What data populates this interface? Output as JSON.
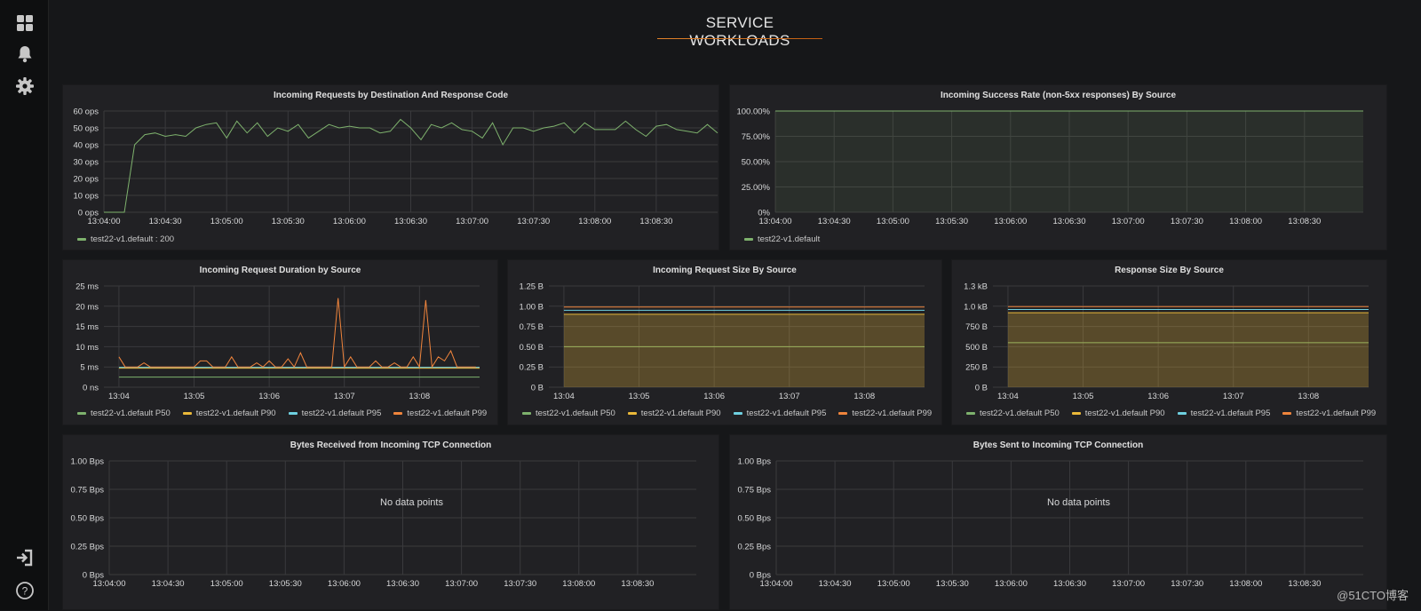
{
  "dashboard": {
    "title": "SERVICE WORKLOADS"
  },
  "sidebar": {
    "items": [
      {
        "name": "dashboards-icon"
      },
      {
        "name": "alerting-bell-icon"
      },
      {
        "name": "settings-gear-icon"
      },
      {
        "name": "sign-in-icon"
      },
      {
        "name": "help-icon"
      }
    ]
  },
  "colors": {
    "green": "#7eb26d",
    "yellow": "#eab839",
    "blue": "#6ed0e0",
    "orange": "#ef843c",
    "grid": "#3a3a3d",
    "axis_text": "#d8d9da",
    "panel_bg": "#212124"
  },
  "watermark": "@51CTO博客",
  "panels": {
    "requests": {
      "title": "Incoming Requests by Destination And Response Code",
      "legend": [
        "test22-v1.default : 200"
      ]
    },
    "success": {
      "title": "Incoming Success Rate (non-5xx responses) By Source",
      "legend": [
        "test22-v1.default"
      ]
    },
    "duration": {
      "title": "Incoming Request Duration by Source",
      "legend": [
        "test22-v1.default P50",
        "test22-v1.default P90",
        "test22-v1.default P95",
        "test22-v1.default P99"
      ]
    },
    "req_size": {
      "title": "Incoming Request Size By Source",
      "legend": [
        "test22-v1.default P50",
        "test22-v1.default P90",
        "test22-v1.default P95",
        "test22-v1.default P99"
      ]
    },
    "resp_size": {
      "title": "Response Size By Source",
      "legend": [
        "test22-v1.default P50",
        "test22-v1.default P90",
        "test22-v1.default P95",
        "test22-v1.default P99"
      ]
    },
    "bytes_recv": {
      "title": "Bytes Received from Incoming TCP Connection",
      "no_data": "No data points"
    },
    "bytes_sent": {
      "title": "Bytes Sent to Incoming TCP Connection",
      "no_data": "No data points"
    }
  },
  "chart_data": [
    {
      "id": "requests",
      "type": "line",
      "title": "Incoming Requests by Destination And Response Code",
      "x_ticks": [
        "13:04:00",
        "13:04:30",
        "13:05:00",
        "13:05:30",
        "13:06:00",
        "13:06:30",
        "13:07:00",
        "13:07:30",
        "13:08:00",
        "13:08:30"
      ],
      "y_ticks": [
        "0 ops",
        "10 ops",
        "20 ops",
        "30 ops",
        "40 ops",
        "50 ops",
        "60 ops"
      ],
      "ylim": [
        0,
        60
      ],
      "xlim": [
        0,
        300
      ],
      "series": [
        {
          "name": "test22-v1.default : 200",
          "color": "#7eb26d",
          "fill": false,
          "x": [
            0,
            5,
            10,
            15,
            20,
            25,
            30,
            35,
            40,
            45,
            50,
            55,
            60,
            65,
            70,
            75,
            80,
            85,
            90,
            95,
            100,
            105,
            110,
            115,
            120,
            125,
            130,
            135,
            140,
            145,
            150,
            155,
            160,
            165,
            170,
            175,
            180,
            185,
            190,
            195,
            200,
            205,
            210,
            215,
            220,
            225,
            230,
            235,
            240,
            245,
            250,
            255,
            260,
            265,
            270,
            275,
            280,
            285,
            290,
            295,
            300
          ],
          "y": [
            0,
            0,
            0,
            40,
            46,
            47,
            45,
            46,
            45,
            50,
            52,
            53,
            44,
            54,
            47,
            53,
            45,
            50,
            48,
            52,
            44,
            48,
            52,
            50,
            51,
            50,
            50,
            47,
            48,
            55,
            50,
            43,
            52,
            50,
            53,
            49,
            48,
            44,
            53,
            40,
            50,
            50,
            48,
            50,
            51,
            53,
            47,
            53,
            49,
            49,
            49,
            54,
            49,
            45,
            51,
            52,
            49,
            48,
            47,
            52,
            47
          ]
        }
      ]
    },
    {
      "id": "success",
      "type": "line",
      "title": "Incoming Success Rate (non-5xx responses) By Source",
      "x_ticks": [
        "13:04:00",
        "13:04:30",
        "13:05:00",
        "13:05:30",
        "13:06:00",
        "13:06:30",
        "13:07:00",
        "13:07:30",
        "13:08:00",
        "13:08:30"
      ],
      "y_ticks": [
        "0%",
        "25.00%",
        "50.00%",
        "75.00%",
        "100.00%"
      ],
      "ylim": [
        0,
        100
      ],
      "xlim": [
        0,
        300
      ],
      "series": [
        {
          "name": "test22-v1.default",
          "color": "#7eb26d",
          "fill": true,
          "x": [
            0,
            300
          ],
          "y": [
            100,
            100
          ]
        }
      ]
    },
    {
      "id": "duration",
      "type": "line",
      "title": "Incoming Request Duration by Source",
      "x_ticks": [
        "13:04",
        "13:05",
        "13:06",
        "13:07",
        "13:08"
      ],
      "y_ticks": [
        "0 ns",
        "5 ms",
        "10 ms",
        "15 ms",
        "20 ms",
        "25 ms"
      ],
      "ylim": [
        0,
        25
      ],
      "xlim": [
        0,
        300
      ],
      "series": [
        {
          "name": "test22-v1.default P50",
          "color": "#7eb26d",
          "fill": false,
          "x": [
            12,
            300
          ],
          "y": [
            2.5,
            2.5
          ]
        },
        {
          "name": "test22-v1.default P90",
          "color": "#eab839",
          "fill": false,
          "x": [
            12,
            300
          ],
          "y": [
            4.7,
            4.7
          ]
        },
        {
          "name": "test22-v1.default P95",
          "color": "#6ed0e0",
          "fill": false,
          "x": [
            12,
            300
          ],
          "y": [
            4.9,
            4.9
          ]
        },
        {
          "name": "test22-v1.default P99",
          "color": "#ef843c",
          "fill": false,
          "x": [
            12,
            17,
            22,
            27,
            32,
            37,
            42,
            47,
            52,
            57,
            62,
            67,
            72,
            77,
            82,
            87,
            92,
            97,
            102,
            107,
            112,
            117,
            122,
            127,
            132,
            137,
            142,
            147,
            152,
            157,
            162,
            167,
            172,
            177,
            182,
            187,
            192,
            197,
            202,
            207,
            212,
            217,
            222,
            227,
            232,
            237,
            242,
            247,
            252,
            257,
            262,
            267,
            272,
            277,
            282,
            287,
            292,
            297
          ],
          "y": [
            7.5,
            5,
            5,
            5,
            6,
            5,
            5,
            5,
            5,
            5,
            5,
            5,
            5,
            6.5,
            6.5,
            5,
            5,
            5,
            7.5,
            5,
            5,
            5,
            6,
            5,
            6.5,
            5,
            5,
            7,
            5,
            8.5,
            5,
            5,
            5,
            5,
            5,
            22,
            5,
            7.5,
            5,
            5,
            5,
            6.5,
            5,
            5,
            6,
            5,
            5,
            7.5,
            5,
            21.5,
            5,
            7.5,
            6.5,
            9,
            5,
            5,
            5,
            5
          ]
        }
      ]
    },
    {
      "id": "req_size",
      "type": "area",
      "title": "Incoming Request Size By Source",
      "x_ticks": [
        "13:04",
        "13:05",
        "13:06",
        "13:07",
        "13:08"
      ],
      "y_ticks": [
        "0 B",
        "0.25 B",
        "0.50 B",
        "0.75 B",
        "1.00 B",
        "1.25 B"
      ],
      "ylim": [
        0,
        1.25
      ],
      "xlim": [
        0,
        300
      ],
      "series": [
        {
          "name": "test22-v1.default P50",
          "color": "#7eb26d",
          "fill": false,
          "x": [
            12,
            300
          ],
          "y": [
            0.5,
            0.5
          ]
        },
        {
          "name": "test22-v1.default P90",
          "color": "#eab839",
          "fill": true,
          "x": [
            12,
            300
          ],
          "y": [
            0.9,
            0.9
          ]
        },
        {
          "name": "test22-v1.default P95",
          "color": "#6ed0e0",
          "fill": false,
          "x": [
            12,
            300
          ],
          "y": [
            0.95,
            0.95
          ]
        },
        {
          "name": "test22-v1.default P99",
          "color": "#ef843c",
          "fill": false,
          "x": [
            12,
            300
          ],
          "y": [
            0.99,
            0.99
          ]
        }
      ]
    },
    {
      "id": "resp_size",
      "type": "area",
      "title": "Response Size By Source",
      "x_ticks": [
        "13:04",
        "13:05",
        "13:06",
        "13:07",
        "13:08"
      ],
      "y_ticks": [
        "0 B",
        "250 B",
        "500 B",
        "750 B",
        "1.0 kB",
        "1.3 kB"
      ],
      "ylim": [
        0,
        1250
      ],
      "xlim": [
        0,
        300
      ],
      "series": [
        {
          "name": "test22-v1.default P50",
          "color": "#7eb26d",
          "fill": false,
          "x": [
            12,
            300
          ],
          "y": [
            550,
            550
          ]
        },
        {
          "name": "test22-v1.default P90",
          "color": "#eab839",
          "fill": true,
          "x": [
            12,
            300
          ],
          "y": [
            920,
            920
          ]
        },
        {
          "name": "test22-v1.default P95",
          "color": "#6ed0e0",
          "fill": false,
          "x": [
            12,
            300
          ],
          "y": [
            960,
            960
          ]
        },
        {
          "name": "test22-v1.default P99",
          "color": "#ef843c",
          "fill": false,
          "x": [
            12,
            300
          ],
          "y": [
            995,
            995
          ]
        }
      ]
    },
    {
      "id": "bytes_recv",
      "type": "line",
      "title": "Bytes Received from Incoming TCP Connection",
      "x_ticks": [
        "13:04:00",
        "13:04:30",
        "13:05:00",
        "13:05:30",
        "13:06:00",
        "13:06:30",
        "13:07:00",
        "13:07:30",
        "13:08:00",
        "13:08:30"
      ],
      "y_ticks": [
        "0 Bps",
        "0.25 Bps",
        "0.50 Bps",
        "0.75 Bps",
        "1.00 Bps"
      ],
      "ylim": [
        0,
        1
      ],
      "xlim": [
        0,
        300
      ],
      "series": []
    },
    {
      "id": "bytes_sent",
      "type": "line",
      "title": "Bytes Sent to Incoming TCP Connection",
      "x_ticks": [
        "13:04:00",
        "13:04:30",
        "13:05:00",
        "13:05:30",
        "13:06:00",
        "13:06:30",
        "13:07:00",
        "13:07:30",
        "13:08:00",
        "13:08:30"
      ],
      "y_ticks": [
        "0 Bps",
        "0.25 Bps",
        "0.50 Bps",
        "0.75 Bps",
        "1.00 Bps"
      ],
      "ylim": [
        0,
        1
      ],
      "xlim": [
        0,
        300
      ],
      "series": []
    }
  ]
}
